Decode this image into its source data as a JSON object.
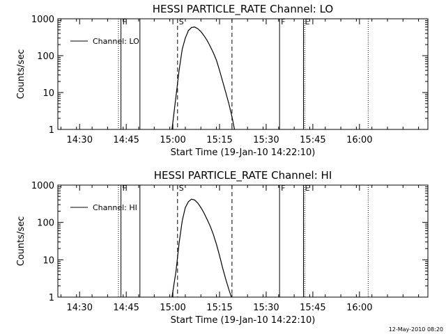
{
  "timestamp": "12-May-2010 08:20",
  "chart_data": [
    {
      "type": "line",
      "title": "HESSI PARTICLE_RATE Channel: LO",
      "xlabel": "Start Time (19-Jan-10 14:22:10)",
      "ylabel": "Counts/sec",
      "yscale": "log",
      "ylim": [
        1,
        1000
      ],
      "xlim_minutes": [
        1,
        120
      ],
      "xticks": [
        {
          "min": 8,
          "label": "14:30"
        },
        {
          "min": 23,
          "label": "14:45"
        },
        {
          "min": 38,
          "label": "15:00"
        },
        {
          "min": 53,
          "label": "15:15"
        },
        {
          "min": 68,
          "label": "15:30"
        },
        {
          "min": 83,
          "label": "15:45"
        },
        {
          "min": 98,
          "label": "16:00"
        }
      ],
      "yticks": [
        {
          "value": 1,
          "label": "1"
        },
        {
          "value": 10,
          "label": "10"
        },
        {
          "value": 100,
          "label": "100"
        },
        {
          "value": 1000,
          "label": "1000"
        }
      ],
      "series": [
        {
          "name": "Channel: LO",
          "x": [
            37.7,
            39,
            40,
            41,
            42,
            43,
            44,
            45,
            46,
            47,
            48,
            49,
            50,
            51,
            52,
            53,
            54,
            55,
            56,
            57,
            57.8
          ],
          "y": [
            1,
            8,
            40,
            150,
            300,
            480,
            580,
            600,
            540,
            450,
            350,
            260,
            180,
            120,
            75,
            40,
            20,
            10,
            5,
            2.2,
            1
          ]
        }
      ],
      "legend_position": "top-left",
      "markers": [
        {
          "min": 20.5,
          "style": "dotted",
          "label": ""
        },
        {
          "min": 21.3,
          "style": "solid",
          "label": "F"
        },
        {
          "min": 27.4,
          "style": "solid",
          "label": ""
        },
        {
          "min": 39.5,
          "style": "dashed",
          "label": "S"
        },
        {
          "min": 57.0,
          "style": "dashed",
          "label": ""
        },
        {
          "min": 72.3,
          "style": "solid",
          "label": "F"
        },
        {
          "min": 80.0,
          "style": "solid",
          "label": "E"
        },
        {
          "min": 80.4,
          "style": "dotted",
          "label": ""
        },
        {
          "min": 100.8,
          "style": "dotted",
          "label": ""
        }
      ]
    },
    {
      "type": "line",
      "title": "HESSI PARTICLE_RATE Channel: HI",
      "xlabel": "Start Time (19-Jan-10 14:22:10)",
      "ylabel": "Counts/sec",
      "yscale": "log",
      "ylim": [
        1,
        1000
      ],
      "xlim_minutes": [
        1,
        120
      ],
      "xticks": [
        {
          "min": 8,
          "label": "14:30"
        },
        {
          "min": 23,
          "label": "14:45"
        },
        {
          "min": 38,
          "label": "15:00"
        },
        {
          "min": 53,
          "label": "15:15"
        },
        {
          "min": 68,
          "label": "15:30"
        },
        {
          "min": 83,
          "label": "15:45"
        },
        {
          "min": 98,
          "label": "16:00"
        }
      ],
      "yticks": [
        {
          "value": 1,
          "label": "1"
        },
        {
          "value": 10,
          "label": "10"
        },
        {
          "value": 100,
          "label": "100"
        },
        {
          "value": 1000,
          "label": "1000"
        }
      ],
      "series": [
        {
          "name": "Channel: HI",
          "x": [
            37.7,
            39,
            40,
            41,
            42,
            43,
            44,
            45,
            46,
            47,
            48,
            49,
            50,
            51,
            52,
            53,
            54,
            55,
            56,
            56.8
          ],
          "y": [
            1,
            5,
            28,
            110,
            250,
            360,
            420,
            400,
            330,
            250,
            180,
            120,
            80,
            48,
            26,
            13,
            6,
            3,
            1.6,
            1
          ]
        }
      ],
      "legend_position": "top-left",
      "markers": [
        {
          "min": 20.5,
          "style": "dotted",
          "label": ""
        },
        {
          "min": 21.3,
          "style": "solid",
          "label": "F"
        },
        {
          "min": 27.4,
          "style": "solid",
          "label": ""
        },
        {
          "min": 39.5,
          "style": "dashed",
          "label": "S"
        },
        {
          "min": 57.0,
          "style": "dashed",
          "label": ""
        },
        {
          "min": 72.3,
          "style": "solid",
          "label": "F"
        },
        {
          "min": 80.0,
          "style": "solid",
          "label": "E"
        },
        {
          "min": 80.4,
          "style": "dotted",
          "label": ""
        },
        {
          "min": 100.8,
          "style": "dotted",
          "label": ""
        }
      ]
    }
  ]
}
